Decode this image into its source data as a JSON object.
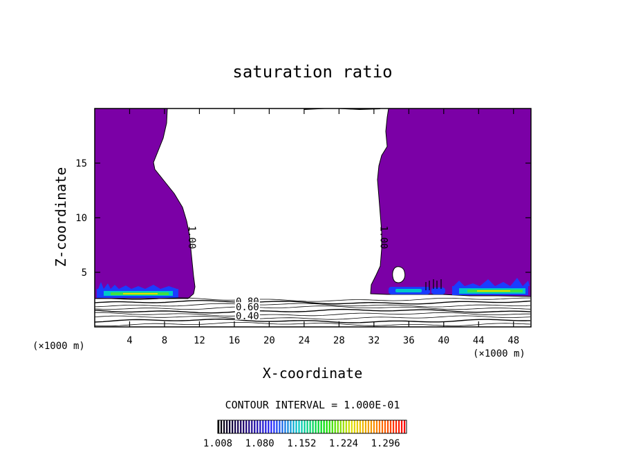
{
  "chart_data": {
    "type": "heatmap",
    "title": "saturation ratio",
    "xlabel": "X-coordinate",
    "ylabel": "Z-coordinate",
    "x_unit": "(×1000 m)",
    "z_unit": "(×1000 m)",
    "xlim": [
      0,
      50
    ],
    "ylim": [
      0,
      20
    ],
    "x_ticks": [
      4,
      8,
      12,
      16,
      20,
      24,
      28,
      32,
      36,
      40,
      44,
      48
    ],
    "y_ticks": [
      5,
      10,
      15
    ],
    "contour_interval": "CONTOUR INTERVAL = 1.000E-01",
    "contour_labels": [
      {
        "text": "1.00",
        "x": 11.0,
        "z": 8.2,
        "rotation": 90
      },
      {
        "text": "1.00",
        "x": 33.0,
        "z": 8.2,
        "rotation": 90
      },
      {
        "text": "0.80",
        "x": 17.5,
        "z": 2.2,
        "rotation": 0
      },
      {
        "text": "0.60",
        "x": 17.5,
        "z": 1.7,
        "rotation": 0
      },
      {
        "text": "0.40",
        "x": 17.5,
        "z": 0.9,
        "rotation": 0
      }
    ],
    "supersaturated_fill_color": "#7b00a6",
    "low_level_contour_z": [
      0.25,
      0.55,
      0.85,
      1.15,
      1.45,
      1.75,
      2.0,
      2.25,
      2.5
    ],
    "colorbar": {
      "min": 1.008,
      "max": 1.332,
      "tick_labels": [
        "1.008",
        "1.080",
        "1.152",
        "1.224",
        "1.296"
      ],
      "colors": [
        "#000000",
        "#1a0070",
        "#2020ff",
        "#00c8c8",
        "#00e000",
        "#e0e000",
        "#ff8000",
        "#ff0000"
      ]
    }
  }
}
